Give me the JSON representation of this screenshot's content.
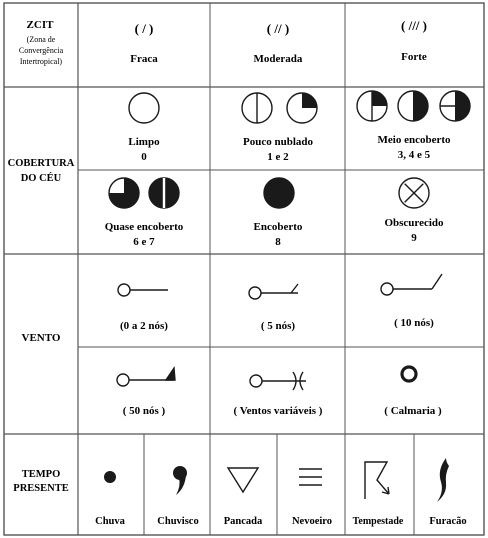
{
  "zcit": {
    "title": "ZCIT",
    "subtitle_lines": [
      "(Zona de",
      "Convergência",
      "Intertropical)"
    ],
    "levels": [
      {
        "mark": "( / )",
        "label": "Fraca"
      },
      {
        "mark": "( // )",
        "label": "Moderada"
      },
      {
        "mark": "( /// )",
        "label": "Forte"
      }
    ]
  },
  "cobertura": {
    "title_lines": [
      "COBERTURA",
      "DO CÉU"
    ],
    "items": [
      {
        "label": "Limpo",
        "code": "0",
        "symbols": [
          {
            "icon": "circle-empty",
            "fill": "empty"
          }
        ]
      },
      {
        "label": "Pouco nublado",
        "code": "1 e 2",
        "symbols": [
          {
            "icon": "circle-vertical-line",
            "fill": "vline"
          },
          {
            "icon": "circle-quarter-filled",
            "fill": "quarter"
          }
        ]
      },
      {
        "label": "Meio encoberto",
        "code": "3, 4 e 5",
        "symbols": [
          {
            "icon": "circle-quarter-vline",
            "fill": "quarter-vline"
          },
          {
            "icon": "circle-half-filled",
            "fill": "half"
          },
          {
            "icon": "circle-half-hline",
            "fill": "half-hline"
          }
        ]
      },
      {
        "label": "Quase encoberto",
        "code": "6 e 7",
        "symbols": [
          {
            "icon": "circle-three-quarter-filled",
            "fill": "three-quarter"
          },
          {
            "icon": "circle-full-vline",
            "fill": "full-vline"
          }
        ]
      },
      {
        "label": "Encoberto",
        "code": "8",
        "symbols": [
          {
            "icon": "circle-full-filled",
            "fill": "full"
          }
        ]
      },
      {
        "label": "Obscurecido",
        "code": "9",
        "symbols": [
          {
            "icon": "circle-cross",
            "fill": "cross"
          }
        ]
      }
    ]
  },
  "vento": {
    "title": "VENTO",
    "items": [
      {
        "label": "(0 a 2 nós)",
        "icon": "wind-calm-shaft-icon"
      },
      {
        "label": "( 5 nós)",
        "icon": "wind-half-barb-icon"
      },
      {
        "label": "( 10 nós)",
        "icon": "wind-full-barb-icon"
      },
      {
        "label": "( 50 nós )",
        "icon": "wind-pennant-icon"
      },
      {
        "label": "( Ventos variáveis )",
        "icon": "wind-variable-icon"
      },
      {
        "label": "( Calmaria )",
        "icon": "calm-ring-icon"
      }
    ]
  },
  "tempo": {
    "title_lines": [
      "TEMPO",
      "PRESENTE"
    ],
    "items": [
      {
        "label": "Chuva",
        "icon": "rain-dot-icon"
      },
      {
        "label": "Chuvisco",
        "icon": "drizzle-comma-icon"
      },
      {
        "label": "Pancada",
        "icon": "shower-triangle-icon"
      },
      {
        "label": "Nevoeiro",
        "icon": "fog-lines-icon"
      },
      {
        "label": "Tempestade",
        "icon": "thunderstorm-icon"
      },
      {
        "label": "Furacão",
        "icon": "hurricane-icon"
      }
    ]
  },
  "colors": {
    "ink": "#1a1a1a",
    "grid": "#555555",
    "paper": "#ffffff"
  }
}
